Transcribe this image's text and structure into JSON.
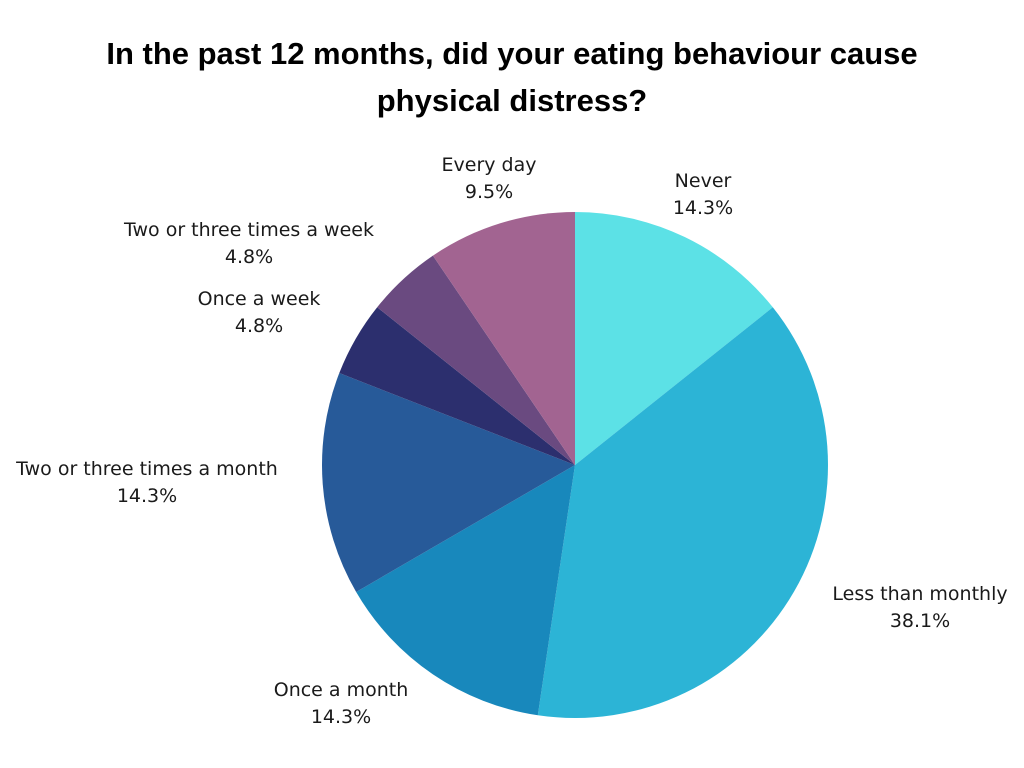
{
  "chart_data": {
    "type": "pie",
    "title_lines": [
      "In the past 12 months, did your eating behaviour cause",
      "physical distress?"
    ],
    "start_angle_deg": 0,
    "direction": "clockwise",
    "slices": [
      {
        "label": "Never",
        "value": 14.3,
        "value_label": "14.3%",
        "color": "#5CE1E6"
      },
      {
        "label": "Less than monthly",
        "value": 38.1,
        "value_label": "38.1%",
        "color": "#2CB4D6"
      },
      {
        "label": "Once a month",
        "value": 14.3,
        "value_label": "14.3%",
        "color": "#1888BC"
      },
      {
        "label": "Two or three times a month",
        "value": 14.3,
        "value_label": "14.3%",
        "color": "#275A99"
      },
      {
        "label": "Once a week",
        "value": 4.8,
        "value_label": "4.8%",
        "color": "#2C2F6E"
      },
      {
        "label": "Two or three times a week",
        "value": 4.8,
        "value_label": "4.8%",
        "color": "#6A4A80"
      },
      {
        "label": "Every day",
        "value": 9.5,
        "value_label": "9.5%",
        "color": "#A26491"
      }
    ]
  }
}
